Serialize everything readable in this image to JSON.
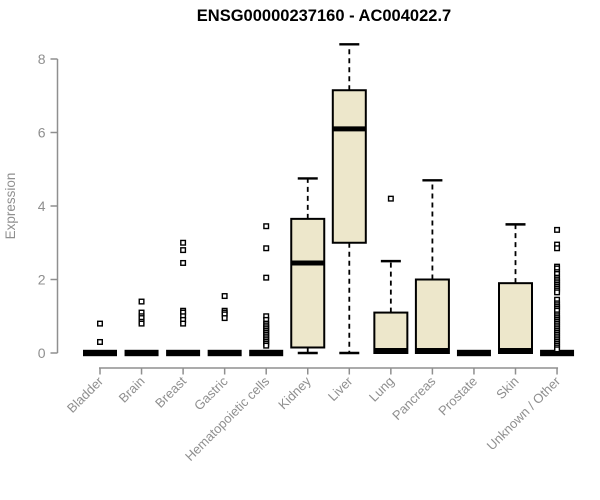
{
  "chart_data": {
    "type": "boxplot",
    "title": "ENSG00000237160 - AC004022.7",
    "xlabel": "",
    "ylabel": "Expression",
    "ylim": [
      0,
      8.4
    ],
    "yticks": [
      0,
      2,
      4,
      6,
      8
    ],
    "grid": false,
    "legend": "none",
    "categories": [
      "Bladder",
      "Brain",
      "Breast",
      "Gastric",
      "Hematopoietic cells",
      "Kidney",
      "Liver",
      "Lung",
      "Pancreas",
      "Prostate",
      "Skin",
      "Unknown / Other"
    ],
    "series": [
      {
        "name": "Bladder",
        "whisker_low": 0,
        "q1": 0,
        "median": 0,
        "q3": 0,
        "whisker_high": 0,
        "outliers": [
          0.8,
          0.3
        ]
      },
      {
        "name": "Brain",
        "whisker_low": 0,
        "q1": 0,
        "median": 0,
        "q3": 0,
        "whisker_high": 0,
        "outliers": [
          1.4,
          1.1,
          1.0,
          0.95,
          0.85,
          0.8
        ]
      },
      {
        "name": "Breast",
        "whisker_low": 0,
        "q1": 0,
        "median": 0,
        "q3": 0,
        "whisker_high": 0,
        "outliers": [
          3.0,
          2.8,
          2.45,
          1.15,
          1.1,
          1.0,
          0.9,
          0.8
        ]
      },
      {
        "name": "Gastric",
        "whisker_low": 0,
        "q1": 0,
        "median": 0,
        "q3": 0,
        "whisker_high": 0,
        "outliers": [
          1.55,
          1.15,
          1.1,
          1.05,
          0.95
        ]
      },
      {
        "name": "Hematopoietic cells",
        "whisker_low": 0,
        "q1": 0,
        "median": 0,
        "q3": 0,
        "whisker_high": 0,
        "outliers": [
          3.45,
          2.85,
          2.05,
          1.0,
          0.9,
          0.8,
          0.75,
          0.7,
          0.65,
          0.6,
          0.55,
          0.5,
          0.45,
          0.4,
          0.35,
          0.3,
          0.25,
          0.2
        ]
      },
      {
        "name": "Kidney",
        "whisker_low": 0,
        "q1": 0.15,
        "median": 2.45,
        "q3": 3.65,
        "whisker_high": 4.75,
        "outliers": []
      },
      {
        "name": "Liver",
        "whisker_low": 0,
        "q1": 3.0,
        "median": 6.1,
        "q3": 7.15,
        "whisker_high": 8.4,
        "outliers": []
      },
      {
        "name": "Lung",
        "whisker_low": 0,
        "q1": 0,
        "median": 0,
        "q3": 1.1,
        "whisker_high": 2.5,
        "outliers": [
          4.2
        ]
      },
      {
        "name": "Pancreas",
        "whisker_low": 0,
        "q1": 0,
        "median": 0,
        "q3": 2.0,
        "whisker_high": 4.7,
        "outliers": []
      },
      {
        "name": "Prostate",
        "whisker_low": 0,
        "q1": 0,
        "median": 0,
        "q3": 0,
        "whisker_high": 0,
        "outliers": []
      },
      {
        "name": "Skin",
        "whisker_low": 0,
        "q1": 0,
        "median": 0,
        "q3": 1.9,
        "whisker_high": 3.5,
        "outliers": []
      },
      {
        "name": "Unknown / Other",
        "whisker_low": 0,
        "q1": 0,
        "median": 0,
        "q3": 0,
        "whisker_high": 0,
        "outliers": [
          3.35,
          2.95,
          2.85,
          2.35,
          2.3,
          2.2,
          2.15,
          2.05,
          2.0,
          1.95,
          1.9,
          1.85,
          1.8,
          1.75,
          1.7,
          1.65,
          1.45,
          1.35,
          1.3,
          1.25,
          1.2,
          1.15,
          1.05,
          1.0,
          0.95,
          0.9,
          0.85,
          0.8,
          0.75,
          0.7,
          0.65,
          0.6,
          0.55,
          0.5,
          0.45,
          0.4,
          0.35,
          0.3,
          0.25,
          0.2,
          0.15,
          0.1
        ]
      }
    ]
  },
  "colors": {
    "box_fill": "#EDE7CB",
    "box_stroke": "#000000",
    "median": "#000000",
    "whisker": "#000000",
    "axis": "#8f8f8f",
    "title": "#000000",
    "outlier_fill": "#ffffff"
  }
}
